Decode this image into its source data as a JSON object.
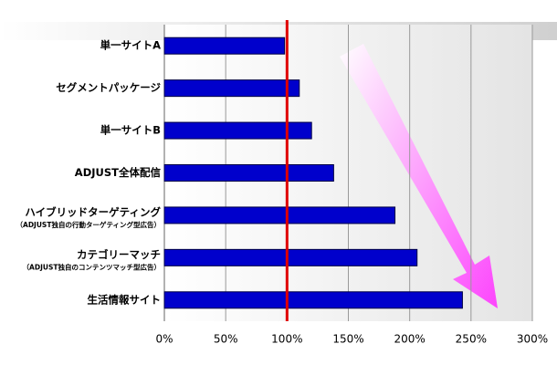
{
  "chart_data": {
    "type": "bar",
    "orientation": "horizontal",
    "categories": [
      "単一サイトA",
      "セグメントパッケージ",
      "単一サイトB",
      "ADJUST全体配信",
      "ハイブリッドターゲティング",
      "カテゴリーマッチ",
      "生活情報サイト"
    ],
    "category_notes": [
      null,
      null,
      null,
      null,
      "（ADJUST独自の行動ターゲティング型広告）",
      "（ADJUST独自のコンテンツマッチ型広告）",
      null
    ],
    "values": [
      98,
      110,
      120,
      138,
      188,
      206,
      243
    ],
    "color": "#0000cc",
    "xlim": [
      0,
      300
    ],
    "xticks": [
      {
        "value": 0,
        "label": "0%"
      },
      {
        "value": 50,
        "label": "50%"
      },
      {
        "value": 100,
        "label": "100%"
      },
      {
        "value": 150,
        "label": "150%"
      },
      {
        "value": 200,
        "label": "200%"
      },
      {
        "value": 250,
        "label": "250%"
      },
      {
        "value": 300,
        "label": "300%"
      }
    ],
    "grid": true,
    "reference_line": {
      "value": 100,
      "color": "#e00000"
    }
  }
}
